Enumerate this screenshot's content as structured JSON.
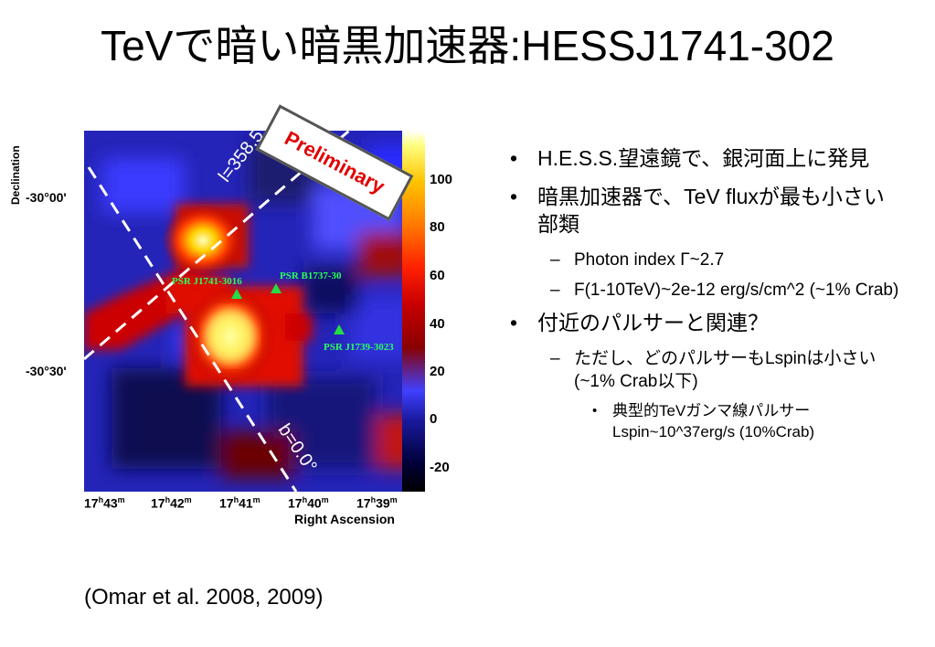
{
  "slide": {
    "title": "TeVで暗い暗黒加速器:HESSJ1741-302",
    "citation": "(Omar et al. 2008,  2009)"
  },
  "figure": {
    "declination_label": "Declination",
    "ra_label": "Right Ascension",
    "dec_ticks": [
      "-30°00'",
      "-30°30'"
    ],
    "ra_ticks": [
      {
        "h": "17",
        "m": "43"
      },
      {
        "h": "17",
        "m": "42"
      },
      {
        "h": "17",
        "m": "41"
      },
      {
        "h": "17",
        "m": "40"
      },
      {
        "h": "17",
        "m": "39"
      }
    ],
    "colorbar_ticks": [
      "100",
      "80",
      "60",
      "40",
      "20",
      "0",
      "-20"
    ],
    "pulsars": [
      "PSR J1741-3016",
      "PSR B1737-30",
      "PSR J1739-3023"
    ],
    "line_l": "l=358.5°",
    "line_b": "b=0.0°",
    "stamp": "Preliminary",
    "colors": {
      "pulsar_marker": "#22dd44",
      "stamp_text": "#e00000"
    }
  },
  "bullets": [
    {
      "level": 1,
      "text": "H.E.S.S.望遠鏡で、銀河面上に発見"
    },
    {
      "level": 1,
      "text": "暗黒加速器で、TeV fluxが最も小さい部類"
    },
    {
      "level": 2,
      "text": "Photon index  Γ~2.7"
    },
    {
      "level": 2,
      "text": "F(1-10TeV)~2e-12 erg/s/cm^2 (~1% Crab)"
    },
    {
      "level": 1,
      "text": "付近のパルサーと関連？"
    },
    {
      "level": 2,
      "text": "ただし、どのパルサーもLspinは小さい (~1% Crab以下)"
    },
    {
      "level": 3,
      "text": "典型的TeVガンマ線パルサー Lspin~10^37erg/s (10%Crab)"
    }
  ]
}
